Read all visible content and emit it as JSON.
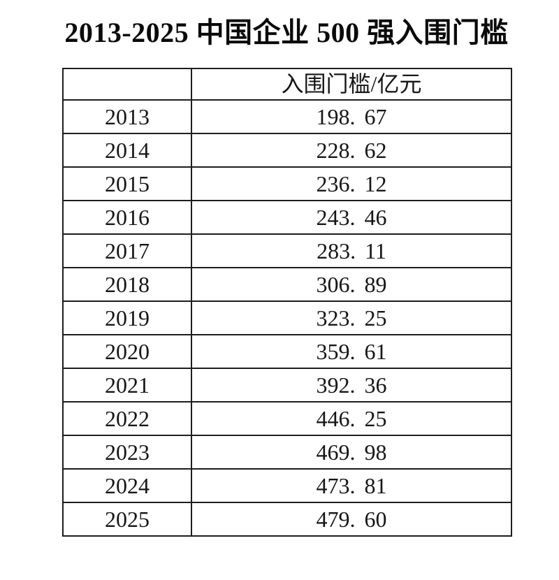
{
  "page": {
    "background": "#ffffff",
    "text_color": "#141414",
    "border_color": "#1d1d1d"
  },
  "title": "2013-2025 中国企业 500 强入围门槛",
  "table": {
    "header": {
      "year_label": "",
      "value_label": "入围门槛/亿元"
    },
    "rows": [
      {
        "year": "2013",
        "value": "198. 67"
      },
      {
        "year": "2014",
        "value": "228. 62"
      },
      {
        "year": "2015",
        "value": "236. 12"
      },
      {
        "year": "2016",
        "value": "243. 46"
      },
      {
        "year": "2017",
        "value": "283. 11"
      },
      {
        "year": "2018",
        "value": "306. 89"
      },
      {
        "year": "2019",
        "value": "323. 25"
      },
      {
        "year": "2020",
        "value": "359. 61"
      },
      {
        "year": "2021",
        "value": "392. 36"
      },
      {
        "year": "2022",
        "value": "446. 25"
      },
      {
        "year": "2023",
        "value": "469. 98"
      },
      {
        "year": "2024",
        "value": "473. 81"
      },
      {
        "year": "2025",
        "value": "479. 60"
      }
    ]
  },
  "chart_data": {
    "type": "table",
    "title": "2013-2025 中国企业 500 强入围门槛",
    "columns": [
      "",
      "入围门槛/亿元"
    ],
    "categories": [
      "2013",
      "2014",
      "2015",
      "2016",
      "2017",
      "2018",
      "2019",
      "2020",
      "2021",
      "2022",
      "2023",
      "2024",
      "2025"
    ],
    "values": [
      198.67,
      228.62,
      236.12,
      243.46,
      283.11,
      306.89,
      323.25,
      359.61,
      392.36,
      446.25,
      469.98,
      473.81,
      479.6
    ],
    "unit": "亿元",
    "value_label": "入围门槛"
  }
}
